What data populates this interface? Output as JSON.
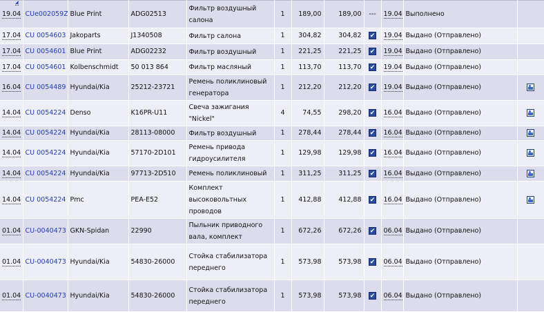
{
  "rows": [
    {
      "date": "19.04",
      "doc": "CUe002059Z",
      "brand": "Blue Print",
      "article": "ADG02513",
      "desc": "Фильтр воздушный салона",
      "qty": "1",
      "price": "189,00",
      "sum": "189,00",
      "flag": "---",
      "checked": false,
      "ship_date": "19.04",
      "status": "Выполнено",
      "pic": false,
      "h": 40
    },
    {
      "date": "17.04",
      "doc": "CU 0054603",
      "brand": "Jakoparts",
      "article": "J1340508",
      "desc": "Фильтр салона",
      "qty": "1",
      "price": "304,82",
      "sum": "304,82",
      "flag": "",
      "checked": true,
      "ship_date": "19.04",
      "status": "Выдано (Отправлено)",
      "pic": false,
      "h": 23
    },
    {
      "date": "17.04",
      "doc": "CU 0054601",
      "brand": "Blue Print",
      "article": "ADG02232",
      "desc": "Фильтр воздушный",
      "qty": "1",
      "price": "221,25",
      "sum": "221,25",
      "flag": "",
      "checked": true,
      "ship_date": "19.04",
      "status": "Выдано (Отправлено)",
      "pic": false,
      "h": 23
    },
    {
      "date": "17.04",
      "doc": "CU 0054601",
      "brand": "Kolbenschmidt",
      "article": "50 013 864",
      "desc": "Фильтр масляный",
      "qty": "1",
      "price": "113,70",
      "sum": "113,70",
      "flag": "",
      "checked": true,
      "ship_date": "19.04",
      "status": "Выдано (Отправлено)",
      "pic": false,
      "h": 22
    },
    {
      "date": "16.04",
      "doc": "CU 0054489",
      "brand": "Hyundai/Kia",
      "article": "25212-23721",
      "desc": "Ремень поликлиновый генератора",
      "qty": "1",
      "price": "212,20",
      "sum": "212,20",
      "flag": "",
      "checked": true,
      "ship_date": "19.04",
      "status": "Выдано (Отправлено)",
      "pic": true,
      "h": 36
    },
    {
      "date": "14.04",
      "doc": "CU 0054224",
      "brand": "Denso",
      "article": "K16PR-U11",
      "desc": "Свеча зажигания \"Nickel\"",
      "qty": "4",
      "price": "74,55",
      "sum": "298,20",
      "flag": "",
      "checked": true,
      "ship_date": "16.04",
      "status": "Выдано (Отправлено)",
      "pic": true,
      "h": 37
    },
    {
      "date": "14.04",
      "doc": "CU 0054224",
      "brand": "Hyundai/Kia",
      "article": "28113-08000",
      "desc": "Фильтр воздушный",
      "qty": "1",
      "price": "278,44",
      "sum": "278,44",
      "flag": "",
      "checked": true,
      "ship_date": "16.04",
      "status": "Выдано (Отправлено)",
      "pic": true,
      "h": 21
    },
    {
      "date": "14.04",
      "doc": "CU 0054224",
      "brand": "Hyundai/Kia",
      "article": "57170-2D101",
      "desc": "Ремень привода гидроусилителя",
      "qty": "1",
      "price": "129,98",
      "sum": "129,98",
      "flag": "",
      "checked": true,
      "ship_date": "16.04",
      "status": "Выдано (Отправлено)",
      "pic": true,
      "h": 35
    },
    {
      "date": "14.04",
      "doc": "CU 0054224",
      "brand": "Hyundai/Kia",
      "article": "97713-2D510",
      "desc": "Ремень поликлиновый",
      "qty": "1",
      "price": "311,25",
      "sum": "311,25",
      "flag": "",
      "checked": true,
      "ship_date": "16.04",
      "status": "Выдано (Отправлено)",
      "pic": true,
      "h": 22
    },
    {
      "date": "14.04",
      "doc": "CU 0054224",
      "brand": "Pmc",
      "article": "PEA-E52",
      "desc": "Комплект высоковольтных проводов",
      "qty": "1",
      "price": "412,88",
      "sum": "412,88",
      "flag": "",
      "checked": true,
      "ship_date": "16.04",
      "status": "Выдано (Отправлено)",
      "pic": true,
      "h": 52
    },
    {
      "date": "01.04",
      "doc": "CU-0040473",
      "brand": "GKN-Spidan",
      "article": "22990",
      "desc": "Пыльник приводного вала, комплект",
      "qty": "1",
      "price": "672,26",
      "sum": "672,26",
      "flag": "",
      "checked": true,
      "ship_date": "06.04",
      "status": "Выдано (Отправлено)",
      "pic": false,
      "h": 34
    },
    {
      "date": "01.04",
      "doc": "CU-0040473",
      "brand": "Hyundai/Kia",
      "article": "54830-26000",
      "desc": "Стойка стабилизатора переднего",
      "qty": "1",
      "price": "573,98",
      "sum": "573,98",
      "flag": "",
      "checked": true,
      "ship_date": "06.04",
      "status": "Выдано (Отправлено)",
      "pic": false,
      "h": 52
    },
    {
      "date": "01.04",
      "doc": "CU-0040473",
      "brand": "Hyundai/Kia",
      "article": "54830-26000",
      "desc": "Стойка стабилизатора переднего",
      "qty": "1",
      "price": "573,98",
      "sum": "573,98",
      "flag": "",
      "checked": true,
      "ship_date": "06.04",
      "status": "Выдано (Отправлено)",
      "pic": false,
      "h": 46
    }
  ]
}
